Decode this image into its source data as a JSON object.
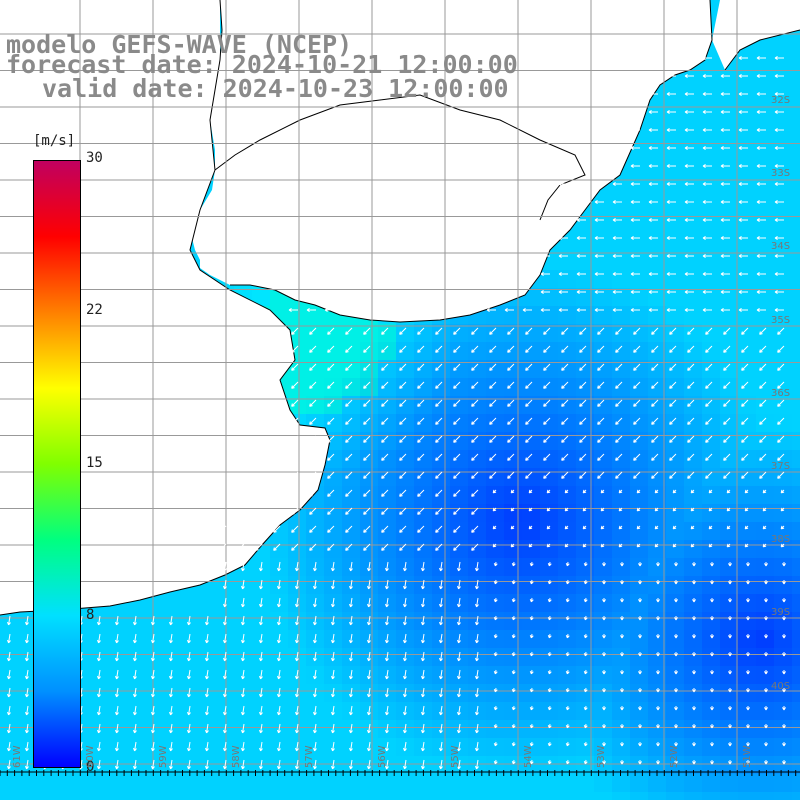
{
  "title": {
    "model": "modelo GEFS-WAVE (NCEP)",
    "forecast": "forecast date: 2024-10-21 12:00:00",
    "valid": "valid date: 2024-10-23 12:00:00"
  },
  "colorbar": {
    "unit": "[m/s]",
    "ticks": [
      "30",
      "22",
      "15",
      "8",
      "0"
    ],
    "colors": [
      "#0000ff",
      "#0090ff",
      "#00e0ff",
      "#00ff80",
      "#80ff00",
      "#ffff00",
      "#ff8000",
      "#ff0000",
      "#c00060"
    ]
  },
  "lat_labels": [
    "32S",
    "33S",
    "34S",
    "35S",
    "36S",
    "37S",
    "38S",
    "39S",
    "40S"
  ],
  "lon_labels": [
    "61W",
    "60W",
    "59W",
    "58W",
    "57W",
    "56W",
    "55W",
    "54W",
    "53W",
    "52W",
    "51W"
  ],
  "colors": {
    "land": "#ffffff",
    "grid": "#999999",
    "arrow": "#ffffff",
    "coast": "#000000"
  }
}
